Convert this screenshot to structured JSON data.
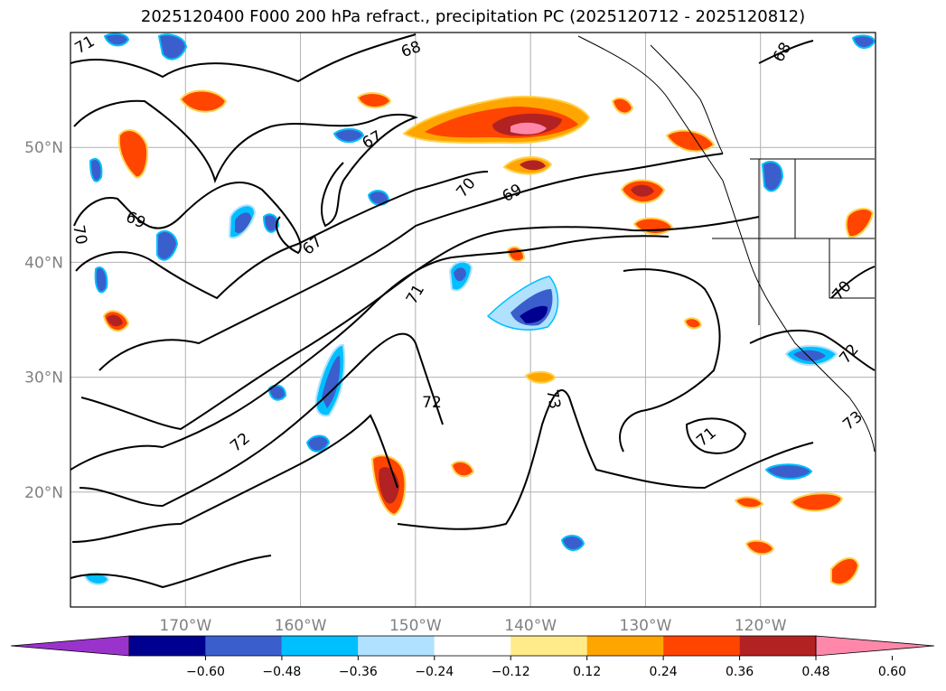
{
  "title": "2025120400 F000 200 hPa refract., precipitation PC (2025120712 - 2025120812)",
  "map": {
    "lon_range": [
      -180,
      -110
    ],
    "lat_range": [
      10,
      60
    ],
    "lat_ticks": [
      {
        "value": 50,
        "label": "50°N"
      },
      {
        "value": 40,
        "label": "40°N"
      },
      {
        "value": 30,
        "label": "30°N"
      },
      {
        "value": 20,
        "label": "20°N"
      }
    ],
    "lon_ticks": [
      {
        "value": -170,
        "label": "170°W"
      },
      {
        "value": -160,
        "label": "160°W"
      },
      {
        "value": -150,
        "label": "150°W"
      },
      {
        "value": -140,
        "label": "140°W"
      },
      {
        "value": -130,
        "label": "130°W"
      },
      {
        "value": -120,
        "label": "120°W"
      }
    ],
    "gridlines": true,
    "contour_labels": [
      "71",
      "68",
      "68",
      "67",
      "69",
      "70",
      "69",
      "67",
      "70",
      "71",
      "72",
      "72",
      "73",
      "71",
      "70",
      "72",
      "73"
    ],
    "colors": {
      "land_line": "#000000",
      "grid": "#b0b0b0",
      "tick_text": "#808080"
    }
  },
  "colorbar": {
    "tick_labels": [
      "−0.60",
      "−0.48",
      "−0.36",
      "−0.24",
      "−0.12",
      "0.12",
      "0.24",
      "0.36",
      "0.48",
      "0.60"
    ],
    "colors": [
      "#9933cc",
      "#000090",
      "#3a5fcd",
      "#00bfff",
      "#b0e2ff",
      "#ffffff",
      "#ffeb8a",
      "#ffa500",
      "#ff4500",
      "#b22222",
      "#ff88aa"
    ],
    "extend": "both"
  }
}
